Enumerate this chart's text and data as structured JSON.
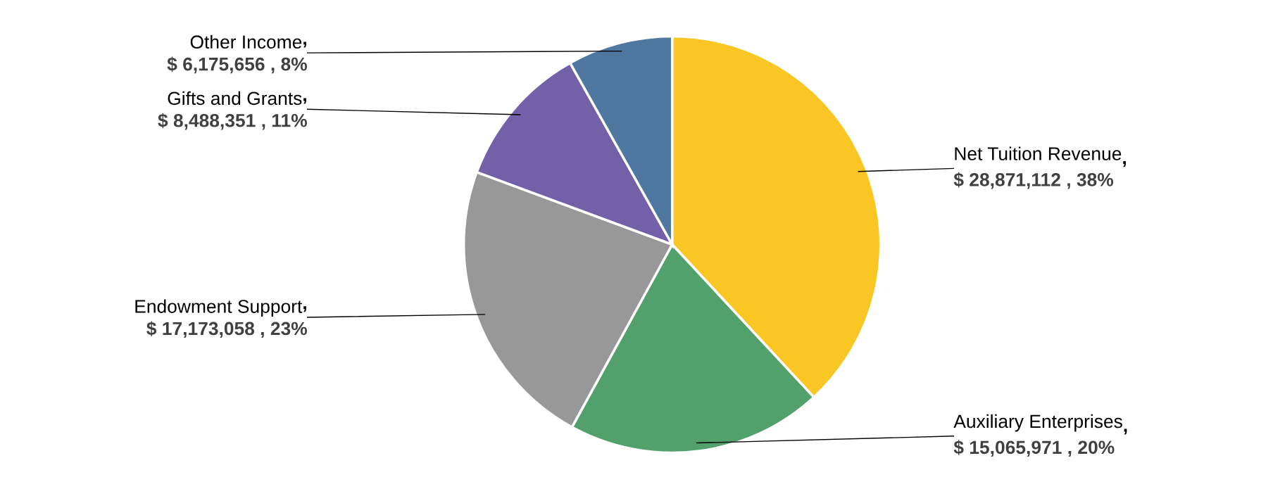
{
  "chart_data": {
    "type": "pie",
    "categories": [
      "Net Tuition Revenue",
      "Auxiliary Enterprises",
      "Endowment Support",
      "Gifts and Grants",
      "Other Income"
    ],
    "values": [
      28871112,
      15065971,
      17173058,
      8488351,
      6175656
    ],
    "value_labels": [
      ",\n$ 28,871,112 , 38%",
      ",\n$ 15,065,971 , 20%",
      ",\n$ 17,173,058 , 23%",
      ",\n$ 8,488,351 , 11%",
      ",\n$ 6,175,656 , 8%"
    ],
    "colors": [
      "#f9c623",
      "#52a06b",
      "#989898",
      "#7260a8",
      "#4e78a0"
    ],
    "legend": false
  }
}
